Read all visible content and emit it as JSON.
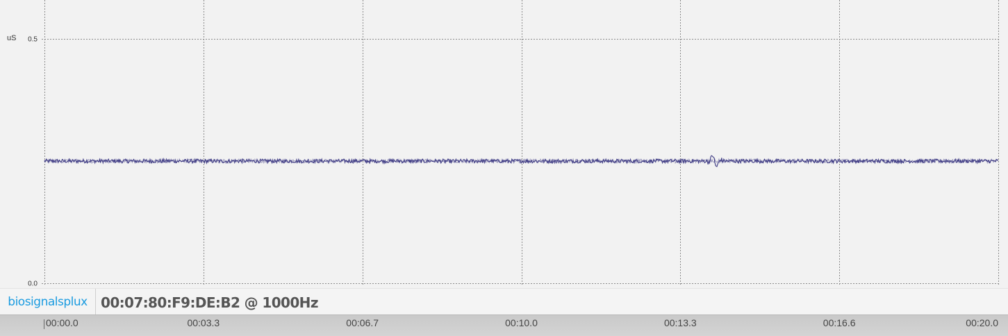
{
  "chart_data": {
    "type": "line",
    "ylabel": "uS",
    "ylim": [
      0.0,
      0.5
    ],
    "yticks": [
      "0.5",
      "0.0"
    ],
    "xlim": [
      0.0,
      20.0
    ],
    "xticks": [
      "00:00.0",
      "00:03.3",
      "00:06.7",
      "00:10.0",
      "00:13.3",
      "00:16.6",
      "00:20.0"
    ],
    "grid": true,
    "series": [
      {
        "color": "#2e2a7a",
        "baseline": 0.25,
        "noise": 0.004,
        "events": [
          {
            "t": 14.05,
            "amplitude": 0.012
          }
        ]
      }
    ]
  },
  "footer": {
    "logo_text": "biosignalsplux",
    "device": "00:07:80:F9:DE:B2 @ 1000Hz"
  },
  "colors": {
    "background": "#f2f2f2",
    "grid": "#8a8a8a",
    "signal": "#2e2a7a",
    "logo": "#1a9be0"
  }
}
